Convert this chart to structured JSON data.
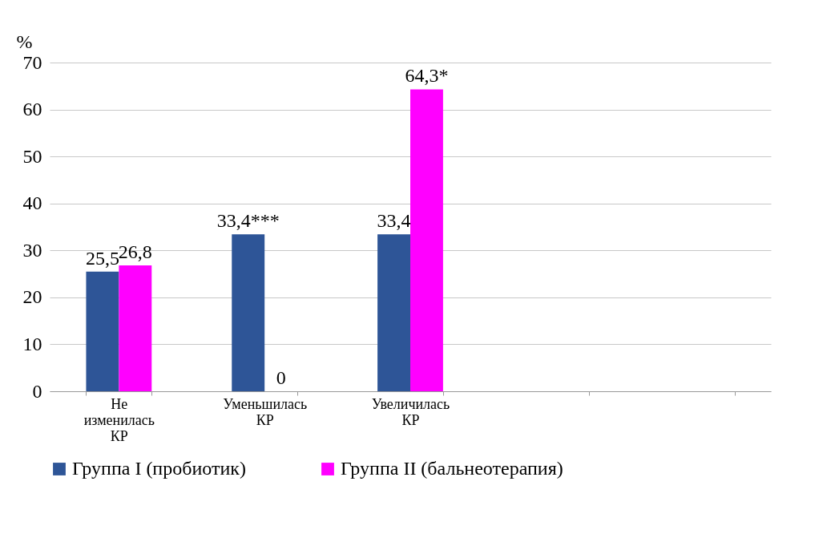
{
  "chart_data": {
    "type": "bar",
    "ylabel": "%",
    "categories": [
      "Не изменилась КР",
      "Уменьшилась КР",
      "Увеличилась КР",
      null,
      null
    ],
    "series": [
      {
        "name": "Группа I (пробиотик)",
        "color": "#2e5597",
        "values": [
          25.5,
          33.4,
          33.4,
          null,
          null
        ],
        "value_labels": [
          "25,5",
          "33,4***",
          "33,4",
          null,
          null
        ]
      },
      {
        "name": "Группа II (бальнеотерапия)",
        "color": "#ff00ff",
        "values": [
          26.8,
          0,
          64.3,
          null,
          null
        ],
        "value_labels": [
          "26,8",
          "0",
          "64,3*",
          null,
          null
        ]
      }
    ],
    "ylim": [
      0,
      70
    ],
    "yticks": [
      0,
      10,
      20,
      30,
      40,
      50,
      60,
      70
    ],
    "grid": "y",
    "legend": "bottom"
  }
}
